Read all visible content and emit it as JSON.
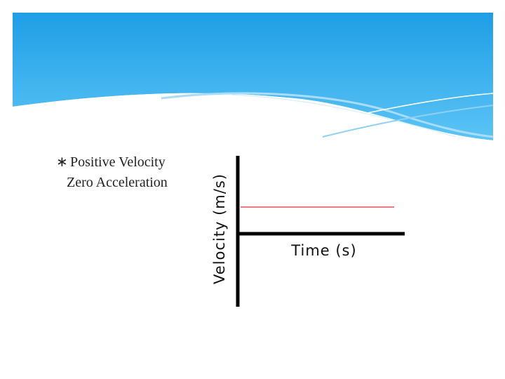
{
  "slide": {
    "bullet": {
      "lines": [
        "Positive Velocity",
        "Zero Acceleration"
      ]
    },
    "graph": {
      "y_axis_label": "Velocity (m/s)",
      "x_axis_label": "Time (s)"
    }
  }
}
